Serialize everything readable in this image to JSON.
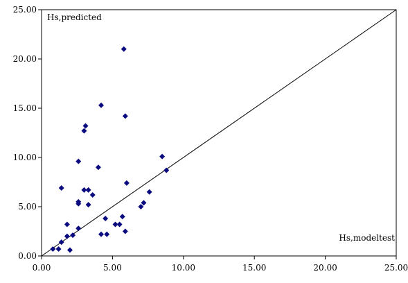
{
  "chart_data": {
    "type": "scatter",
    "title": "",
    "xlabel": "Hs,modeltest",
    "ylabel": "Hs,predicted",
    "xlim": [
      0,
      25
    ],
    "ylim": [
      0,
      25
    ],
    "x_ticks": [
      "0.00",
      "5.00",
      "10.00",
      "15.00",
      "20.00",
      "25.00"
    ],
    "y_ticks": [
      "0.00",
      "5.00",
      "10.00",
      "15.00",
      "20.00",
      "25.00"
    ],
    "grid": false,
    "reference_line": {
      "from": [
        0,
        0
      ],
      "to": [
        25,
        25
      ]
    },
    "marker": "diamond",
    "colors": {
      "points": "#0b0b80",
      "line": "#000000",
      "axes": "#000000",
      "background": "#ffffff"
    },
    "series": [
      {
        "points": [
          [
            0.8,
            0.7
          ],
          [
            1.2,
            0.7
          ],
          [
            1.4,
            1.4
          ],
          [
            1.8,
            2.0
          ],
          [
            2.0,
            0.6
          ],
          [
            2.2,
            2.1
          ],
          [
            1.8,
            3.2
          ],
          [
            2.6,
            2.8
          ],
          [
            2.6,
            5.3
          ],
          [
            2.6,
            5.5
          ],
          [
            3.0,
            6.7
          ],
          [
            3.3,
            6.7
          ],
          [
            3.6,
            6.2
          ],
          [
            3.3,
            5.2
          ],
          [
            1.4,
            6.9
          ],
          [
            2.6,
            9.6
          ],
          [
            3.0,
            12.7
          ],
          [
            3.1,
            13.2
          ],
          [
            4.0,
            9.0
          ],
          [
            4.2,
            15.3
          ],
          [
            4.2,
            2.2
          ],
          [
            4.5,
            3.8
          ],
          [
            4.6,
            2.2
          ],
          [
            5.2,
            3.2
          ],
          [
            5.5,
            3.2
          ],
          [
            5.7,
            4.0
          ],
          [
            5.9,
            2.5
          ],
          [
            5.8,
            21.0
          ],
          [
            5.9,
            14.2
          ],
          [
            6.0,
            7.4
          ],
          [
            7.0,
            5.0
          ],
          [
            7.2,
            5.4
          ],
          [
            7.6,
            6.5
          ],
          [
            8.5,
            10.1
          ],
          [
            8.8,
            8.7
          ]
        ]
      }
    ]
  }
}
